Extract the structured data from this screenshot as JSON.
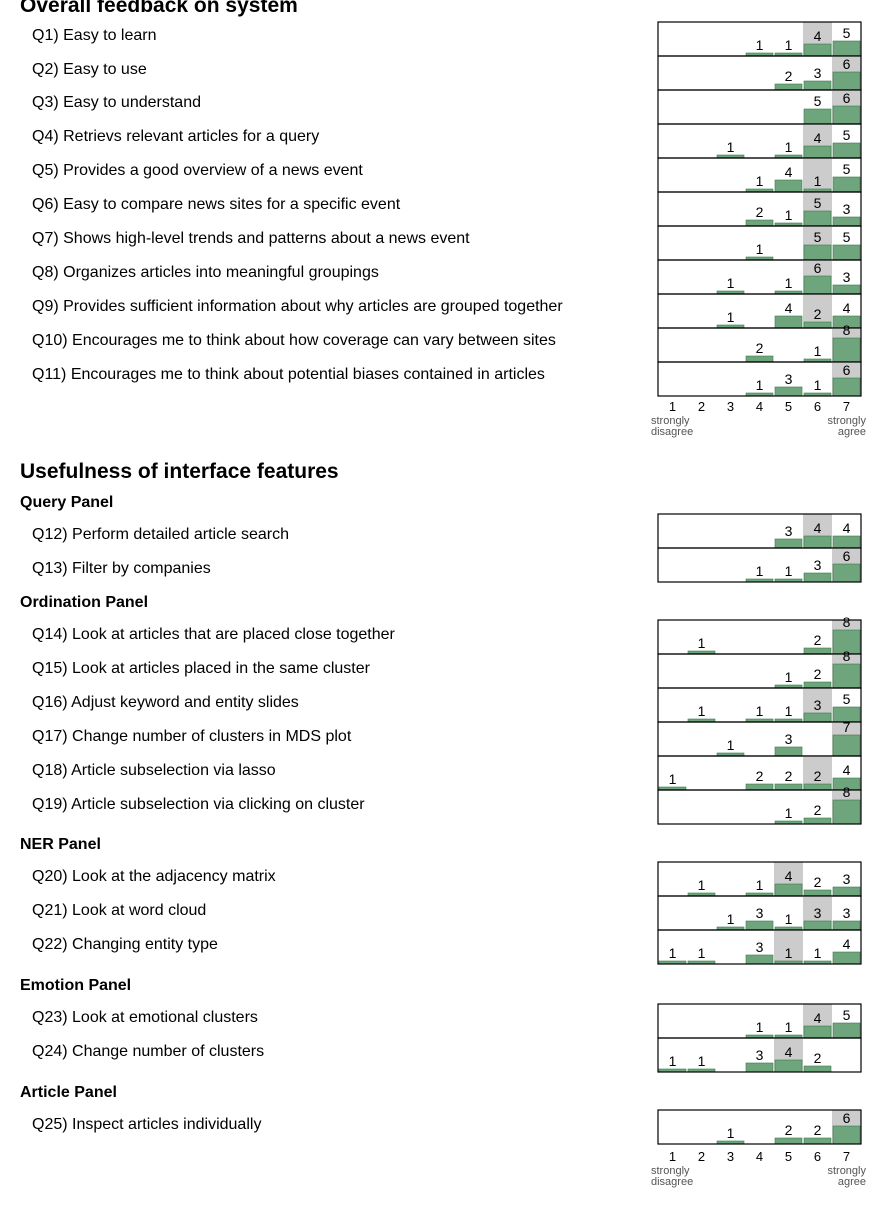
{
  "chart_data": {
    "type": "bar",
    "scale_ticks": [
      "1",
      "2",
      "3",
      "4",
      "5",
      "6",
      "7"
    ],
    "scale_left_label": "strongly\ndisagree",
    "scale_right_label": "strongly\nagree",
    "sections": [
      {
        "title": "Overall feedback on system",
        "groups": [
          {
            "name": "",
            "questions": [
              {
                "label": "Q1) Easy to learn",
                "counts": [
                  0,
                  0,
                  0,
                  1,
                  1,
                  4,
                  5
                ],
                "median": 6
              },
              {
                "label": "Q2) Easy to use",
                "counts": [
                  0,
                  0,
                  0,
                  0,
                  2,
                  3,
                  6
                ],
                "median": 7
              },
              {
                "label": "Q3) Easy to understand",
                "counts": [
                  0,
                  0,
                  0,
                  0,
                  0,
                  5,
                  6
                ],
                "median": 7
              },
              {
                "label": "Q4) Retrievs relevant articles for a query",
                "counts": [
                  0,
                  0,
                  1,
                  0,
                  1,
                  4,
                  5
                ],
                "median": 6
              },
              {
                "label": "Q5) Provides a good overview of a news event",
                "counts": [
                  0,
                  0,
                  0,
                  1,
                  4,
                  1,
                  5
                ],
                "median": 6
              },
              {
                "label": "Q6) Easy to compare news sites for a specific event",
                "counts": [
                  0,
                  0,
                  0,
                  2,
                  1,
                  5,
                  3
                ],
                "median": 6
              },
              {
                "label": "Q7) Shows high-level trends and patterns about a news event",
                "counts": [
                  0,
                  0,
                  0,
                  1,
                  0,
                  5,
                  5
                ],
                "median": 6
              },
              {
                "label": "Q8) Organizes articles into meaningful groupings",
                "counts": [
                  0,
                  0,
                  1,
                  0,
                  1,
                  6,
                  3
                ],
                "median": 6
              },
              {
                "label": "Q9) Provides sufficient information about why articles are grouped together",
                "counts": [
                  0,
                  0,
                  1,
                  0,
                  4,
                  2,
                  4
                ],
                "median": 6
              },
              {
                "label": "Q10) Encourages me to think about how coverage can vary between sites",
                "counts": [
                  0,
                  0,
                  0,
                  2,
                  0,
                  1,
                  8
                ],
                "median": 7
              },
              {
                "label": "Q11) Encourages me to think about potential biases contained in articles",
                "counts": [
                  0,
                  0,
                  0,
                  1,
                  3,
                  1,
                  6
                ],
                "median": 7
              }
            ]
          }
        ]
      },
      {
        "title": "Usefulness of interface features",
        "groups": [
          {
            "name": "Query Panel",
            "questions": [
              {
                "label": "Q12) Perform detailed article search",
                "counts": [
                  0,
                  0,
                  0,
                  0,
                  3,
                  4,
                  4
                ],
                "median": 6
              },
              {
                "label": "Q13) Filter by companies",
                "counts": [
                  0,
                  0,
                  0,
                  1,
                  1,
                  3,
                  6
                ],
                "median": 7
              }
            ]
          },
          {
            "name": "Ordination Panel",
            "questions": [
              {
                "label": "Q14) Look at articles that are placed close together",
                "counts": [
                  0,
                  1,
                  0,
                  0,
                  0,
                  2,
                  8
                ],
                "median": 7
              },
              {
                "label": "Q15) Look at articles placed in the same cluster",
                "counts": [
                  0,
                  0,
                  0,
                  0,
                  1,
                  2,
                  8
                ],
                "median": 7
              },
              {
                "label": "Q16) Adjust keyword and entity slides",
                "counts": [
                  0,
                  1,
                  0,
                  1,
                  1,
                  3,
                  5
                ],
                "median": 6
              },
              {
                "label": "Q17) Change number of clusters in MDS plot",
                "counts": [
                  0,
                  0,
                  1,
                  0,
                  3,
                  0,
                  7
                ],
                "median": 7
              },
              {
                "label": "Q18) Article subselection via lasso",
                "counts": [
                  1,
                  0,
                  0,
                  2,
                  2,
                  2,
                  4
                ],
                "median": 6
              },
              {
                "label": "Q19) Article subselection via clicking on cluster",
                "counts": [
                  0,
                  0,
                  0,
                  0,
                  1,
                  2,
                  8
                ],
                "median": 7
              }
            ]
          },
          {
            "name": "NER Panel",
            "questions": [
              {
                "label": "Q20) Look at the adjacency matrix",
                "counts": [
                  0,
                  1,
                  0,
                  1,
                  4,
                  2,
                  3
                ],
                "median": 5
              },
              {
                "label": "Q21) Look at word cloud",
                "counts": [
                  0,
                  0,
                  1,
                  3,
                  1,
                  3,
                  3
                ],
                "median": 6
              },
              {
                "label": "Q22) Changing entity type",
                "counts": [
                  1,
                  1,
                  0,
                  3,
                  1,
                  1,
                  4
                ],
                "median": 5
              }
            ]
          },
          {
            "name": "Emotion Panel",
            "questions": [
              {
                "label": "Q23) Look at emotional clusters",
                "counts": [
                  0,
                  0,
                  0,
                  1,
                  1,
                  4,
                  5
                ],
                "median": 6
              },
              {
                "label": "Q24) Change number of clusters",
                "counts": [
                  1,
                  1,
                  0,
                  3,
                  4,
                  2,
                  0
                ],
                "median": 5
              }
            ]
          },
          {
            "name": "Article Panel",
            "questions": [
              {
                "label": "Q25) Inspect articles individually",
                "counts": [
                  0,
                  0,
                  1,
                  0,
                  2,
                  2,
                  6
                ],
                "median": 7
              }
            ]
          }
        ]
      }
    ],
    "colors": {
      "bar": "#6ea57c",
      "bar_stroke": "#3f7a4f",
      "median_bg": "#cccccc",
      "box_stroke": "#000000"
    }
  }
}
